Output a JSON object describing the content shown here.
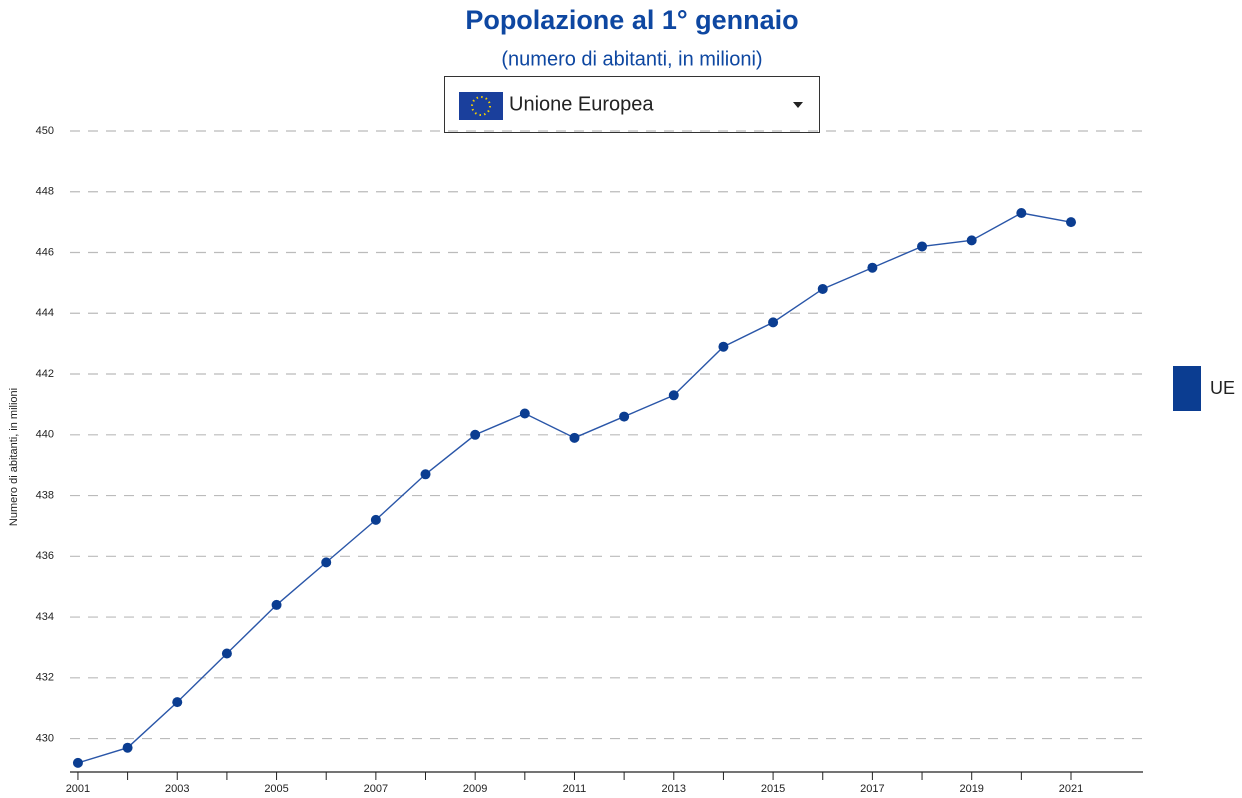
{
  "chart_data": {
    "type": "line",
    "title": "Popolazione al 1° gennaio",
    "subtitle": "(numero di abitanti, in milioni)",
    "selector": "Unione Europea",
    "y_label": "Numero di abitanti, in milioni",
    "x": [
      2001,
      2002,
      2003,
      2004,
      2005,
      2006,
      2007,
      2008,
      2009,
      2010,
      2011,
      2012,
      2013,
      2014,
      2015,
      2016,
      2017,
      2018,
      2019,
      2020,
      2021
    ],
    "series": [
      {
        "name": "UE",
        "color": "#0b3d91",
        "values": [
          429.2,
          429.7,
          431.2,
          432.8,
          434.4,
          435.8,
          437.2,
          438.7,
          440.0,
          440.7,
          439.9,
          440.6,
          441.3,
          442.9,
          443.7,
          444.8,
          445.5,
          446.2,
          446.4,
          447.3,
          447.0
        ]
      }
    ],
    "xlim": [
      2000.84,
      2022.45
    ],
    "xticks": [
      2001,
      2003,
      2005,
      2007,
      2009,
      2011,
      2013,
      2015,
      2017,
      2019,
      2021
    ],
    "xticks_minor": [
      2002,
      2004,
      2006,
      2008,
      2010,
      2012,
      2014,
      2016,
      2018,
      2020
    ],
    "ylim": [
      428.9,
      450
    ],
    "yticks": [
      430,
      432,
      434,
      436,
      438,
      440,
      442,
      444,
      446,
      448,
      450
    ],
    "grid": true,
    "legend": "right"
  }
}
